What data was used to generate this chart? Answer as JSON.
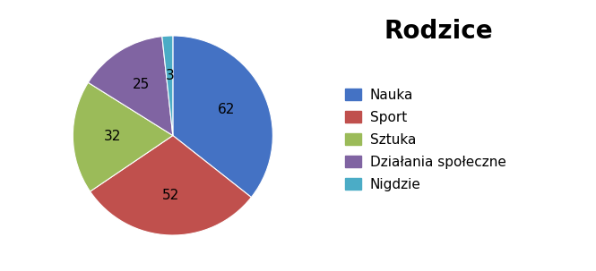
{
  "title": "Rodzice",
  "labels": [
    "Nauka",
    "Sport",
    "Sztuka",
    "Działania społeczne",
    "Nigdzie"
  ],
  "values": [
    62,
    52,
    32,
    25,
    3
  ],
  "colors": [
    "#4472C4",
    "#C0504D",
    "#9BBB59",
    "#8064A2",
    "#4BACC6"
  ],
  "startangle": 90,
  "label_fontsize": 11,
  "title_fontsize": 20,
  "legend_fontsize": 11,
  "background_color": "#FFFFFF"
}
